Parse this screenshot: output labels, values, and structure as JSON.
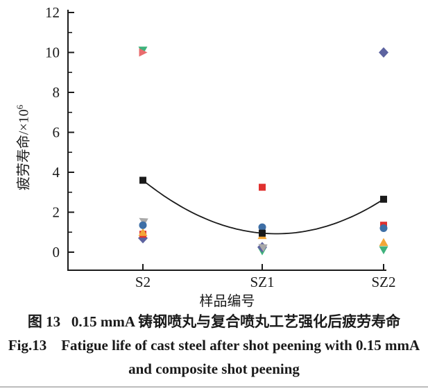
{
  "figure": {
    "caption_zh": "图 13   0.15 mmA 铸钢喷丸与复合喷丸工艺强化后疲劳寿命",
    "caption_en_line1": "Fig.13    Fatigue life of cast steel after shot peening with 0.15 mmA",
    "caption_en_line2": "and composite shot peening"
  },
  "chart_data": {
    "type": "scatter",
    "title": "",
    "xlabel": "样品编号",
    "ylabel": "疲劳寿命/×10⁶",
    "ylabel_base": "疲劳寿命/×10",
    "ylabel_exp": "6",
    "categories": [
      "S2",
      "SZ1",
      "SZ2"
    ],
    "ylim": [
      -1,
      12
    ],
    "yticks": [
      0,
      2,
      4,
      6,
      8,
      10,
      12
    ],
    "yminorticks": [
      1,
      3,
      5,
      7,
      9,
      11
    ],
    "grid": false,
    "legend": "none",
    "axis_color": "#1a1a1a",
    "series": [
      {
        "name": "green-triangle-down",
        "marker": "triangle-down",
        "color": "#3fb27c",
        "points": [
          {
            "x": "S2",
            "y": 10.1
          },
          {
            "x": "SZ1",
            "y": 0.05
          },
          {
            "x": "SZ2",
            "y": 0.1
          }
        ]
      },
      {
        "name": "purple-diamond",
        "marker": "diamond",
        "color": "#5d63a0",
        "points": [
          {
            "x": "S2",
            "y": 0.7
          },
          {
            "x": "SZ1",
            "y": 0.25
          },
          {
            "x": "SZ2",
            "y": 10.0
          }
        ]
      },
      {
        "name": "gray-triangle-left",
        "marker": "triangle-left",
        "color": "#a9a9a9",
        "tilt": 30,
        "points": [
          {
            "x": "S2",
            "y": 1.6
          },
          {
            "x": "SZ1",
            "y": 0.3
          }
        ]
      },
      {
        "name": "salmon-triangle-right",
        "marker": "triangle-right",
        "color": "#e96c6e",
        "points": [
          {
            "x": "S2",
            "y": 10.0
          }
        ]
      },
      {
        "name": "red-square",
        "marker": "square",
        "color": "#e0312f",
        "points": [
          {
            "x": "S2",
            "y": 0.9
          },
          {
            "x": "SZ1",
            "y": 3.25
          },
          {
            "x": "SZ2",
            "y": 1.35
          }
        ]
      },
      {
        "name": "orange-triangle-up",
        "marker": "triangle-up",
        "color": "#f3a738",
        "points": [
          {
            "x": "S2",
            "y": 1.0
          },
          {
            "x": "SZ1",
            "y": 0.85
          },
          {
            "x": "SZ2",
            "y": 0.5
          }
        ]
      },
      {
        "name": "blue-circle",
        "marker": "circle",
        "color": "#3e6fa6",
        "points": [
          {
            "x": "S2",
            "y": 1.35
          },
          {
            "x": "SZ1",
            "y": 1.25
          },
          {
            "x": "SZ2",
            "y": 1.2
          }
        ]
      },
      {
        "name": "black-square",
        "marker": "square",
        "color": "#1a1a1a",
        "points": [
          {
            "x": "S2",
            "y": 3.6
          },
          {
            "x": "SZ1",
            "y": 0.95
          },
          {
            "x": "SZ2",
            "y": 2.65
          }
        ]
      }
    ],
    "trend_curve": {
      "through_series": "black-square",
      "color": "#1a1a1a"
    }
  }
}
